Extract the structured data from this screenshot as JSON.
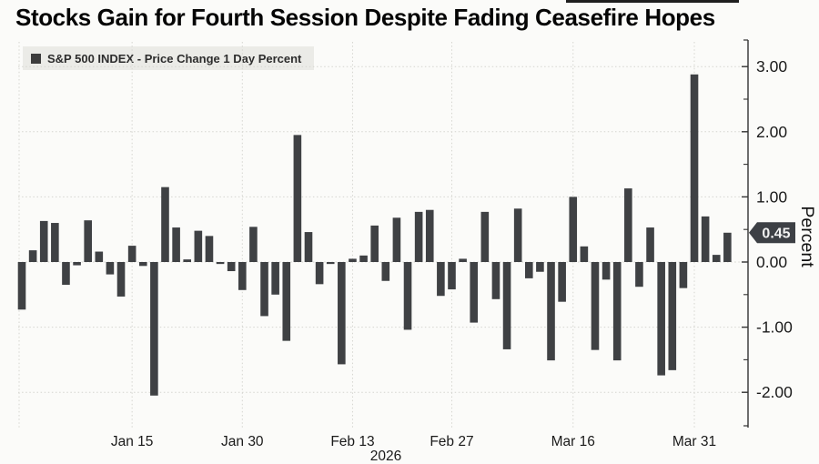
{
  "header": {
    "title": "Stocks Gain for Fourth Session Despite Fading Ceasefire Hopes"
  },
  "legend": {
    "marker": "square",
    "label": "S&P 500 INDEX - Price Change 1 Day Percent"
  },
  "chart_data": {
    "type": "bar",
    "title": "Stocks Gain for Fourth Session Despite Fading Ceasefire Hopes",
    "series_name": "S&P 500 INDEX - Price Change 1 Day Percent",
    "ylabel": "Percent",
    "xlabel": "",
    "year_label": "2026",
    "last_value_label": "0.45",
    "ylim": [
      -2.55,
      3.35
    ],
    "grid": true,
    "legend_position": "top-left",
    "y_major_ticks": [
      {
        "value": 3,
        "label": "3.00"
      },
      {
        "value": 2,
        "label": "2.00"
      },
      {
        "value": 1,
        "label": "1.00"
      },
      {
        "value": 0,
        "label": "0.00"
      },
      {
        "value": -1,
        "label": "-1.00"
      },
      {
        "value": -2,
        "label": "-2.00"
      }
    ],
    "y_minor_ticks": [
      2.5,
      1.5,
      0.5,
      -0.5,
      -1.5
    ],
    "x_ticks": [
      {
        "index": 10,
        "label": "Jan 15"
      },
      {
        "index": 20,
        "label": "Jan 30"
      },
      {
        "index": 30,
        "label": "Feb 13"
      },
      {
        "index": 39,
        "label": "Feb 27"
      },
      {
        "index": 50,
        "label": "Mar 16"
      },
      {
        "index": 61,
        "label": "Mar 31"
      }
    ],
    "values": [
      -0.73,
      0.18,
      0.63,
      0.6,
      -0.35,
      -0.05,
      0.64,
      0.16,
      -0.19,
      -0.53,
      0.25,
      -0.06,
      -2.05,
      1.15,
      0.53,
      0.04,
      0.48,
      0.4,
      -0.03,
      -0.14,
      -0.43,
      0.54,
      -0.83,
      -0.5,
      -1.21,
      1.95,
      0.46,
      -0.34,
      -0.03,
      -1.57,
      0.05,
      0.1,
      0.56,
      -0.29,
      0.68,
      -1.04,
      0.77,
      0.8,
      -0.52,
      -0.42,
      0.05,
      -0.93,
      0.77,
      -0.57,
      -1.34,
      0.82,
      -0.25,
      -0.15,
      -1.51,
      -0.61,
      1.0,
      0.24,
      -1.35,
      -0.27,
      -1.51,
      1.13,
      -0.38,
      0.53,
      -1.74,
      -1.66,
      -0.4,
      2.88,
      0.7,
      0.11,
      0.45
    ],
    "colors": {
      "bar": "#3f4144",
      "grid": "#d5d5d0",
      "axis": "#333333",
      "text": "#1a1a1a",
      "badge_bg": "#3d4045",
      "badge_text": "#f2f2f2",
      "background": "#fbfbf9",
      "legend_bg": "#ebebe7"
    }
  }
}
